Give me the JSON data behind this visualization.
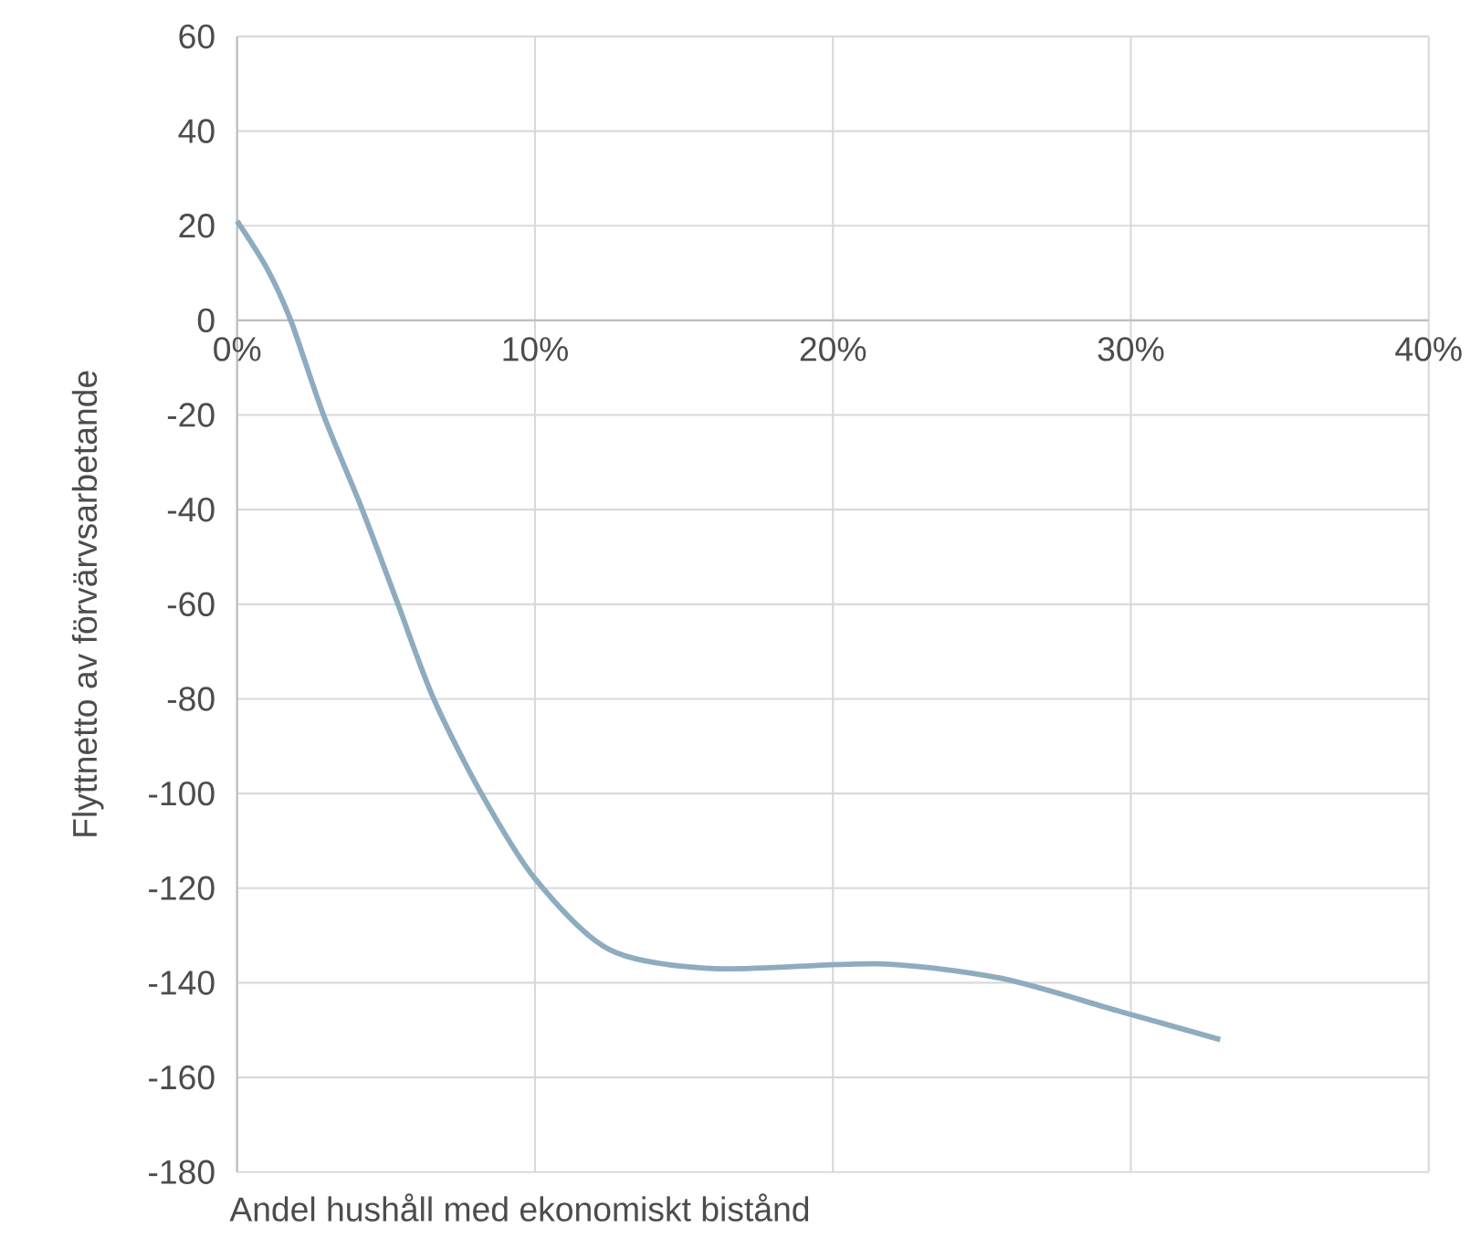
{
  "chart_data": {
    "type": "line",
    "xlabel": "Andel hushåll med ekonomiskt bistånd",
    "ylabel": "Flyttnetto av förvärvsarbetande",
    "x": [
      0,
      1,
      1.8,
      2.9,
      4.2,
      5.4,
      6.6,
      8.2,
      10,
      12.5,
      16,
      21.5,
      25.6,
      29.6,
      33
    ],
    "series": [
      {
        "color": "#8eacbf",
        "values": [
          21,
          11,
          0,
          -20,
          -40,
          -60,
          -80,
          -100,
          -118,
          -133,
          -137,
          -136,
          -139,
          -146,
          -152
        ]
      }
    ],
    "xlim": [
      0,
      40
    ],
    "xticks": [
      {
        "value": 0,
        "label": "0%"
      },
      {
        "value": 10,
        "label": "10%"
      },
      {
        "value": 20,
        "label": "20%"
      },
      {
        "value": 30,
        "label": "30%"
      },
      {
        "value": 40,
        "label": "40%"
      }
    ],
    "ylim": [
      -180,
      60
    ],
    "yticks": [
      -180,
      -160,
      -140,
      -120,
      -100,
      -80,
      -60,
      -40,
      -20,
      0,
      20,
      40,
      60
    ],
    "grid": true
  }
}
